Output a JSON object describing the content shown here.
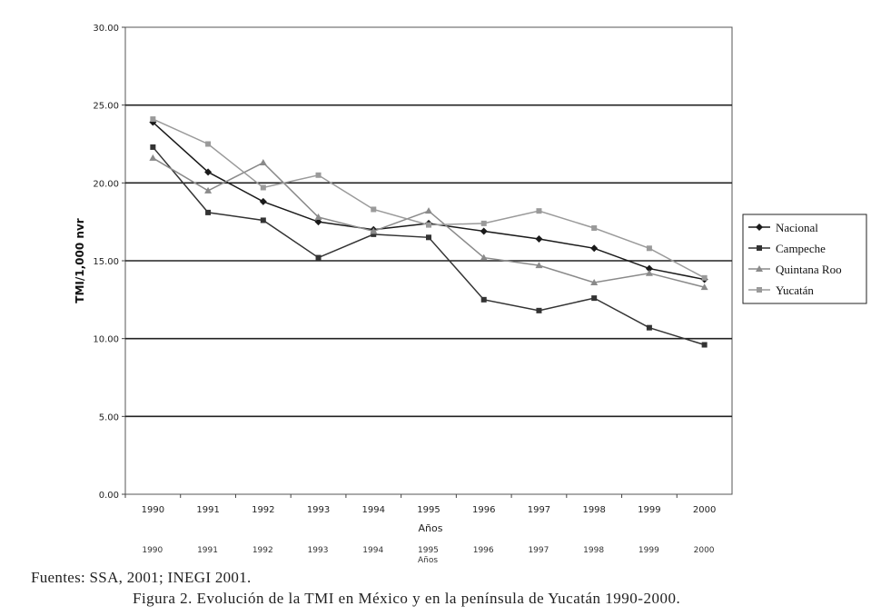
{
  "chart_data": {
    "type": "line",
    "xlabel": "Años",
    "ylabel": "TMI/1,000 nvr",
    "categories": [
      "1990",
      "1991",
      "1992",
      "1993",
      "1994",
      "1995",
      "1996",
      "1997",
      "1998",
      "1999",
      "2000"
    ],
    "ylim": [
      0,
      30
    ],
    "yticks": [
      "0.00",
      "5.00",
      "10.00",
      "15.00",
      "20.00",
      "25.00",
      "30.00"
    ],
    "grid": true,
    "legend_position": "right",
    "series": [
      {
        "name": "Nacional",
        "marker": "diamond",
        "color": "#1a1a1a",
        "values": [
          23.9,
          20.7,
          18.8,
          17.5,
          17.0,
          17.4,
          16.9,
          16.4,
          15.8,
          14.5,
          13.8
        ]
      },
      {
        "name": "Campeche",
        "marker": "square",
        "color": "#333333",
        "values": [
          22.3,
          18.1,
          17.6,
          15.2,
          16.7,
          16.5,
          12.5,
          11.8,
          12.6,
          10.7,
          9.6
        ]
      },
      {
        "name": "Quintana Roo",
        "marker": "triangle",
        "color": "#8a8a8a",
        "values": [
          21.6,
          19.5,
          21.3,
          17.8,
          16.9,
          18.2,
          15.2,
          14.7,
          13.6,
          14.2,
          13.3
        ]
      },
      {
        "name": "Yucatán",
        "marker": "square",
        "color": "#9a9a9a",
        "values": [
          24.1,
          22.5,
          19.7,
          20.5,
          18.3,
          17.3,
          17.4,
          18.2,
          17.1,
          15.8,
          13.9
        ]
      }
    ]
  },
  "duplicate_axis": {
    "ticks": [
      "1990",
      "1991",
      "1992",
      "1993",
      "1994",
      "1995",
      "1996",
      "1997",
      "1998",
      "1999",
      "2000"
    ],
    "label": "Años"
  },
  "source_text": "Fuentes: SSA, 2001; INEGI 2001.",
  "figure_caption": "Figura 2. Evolución de la TMI en México y en la península de Yucatán 1990-2000."
}
